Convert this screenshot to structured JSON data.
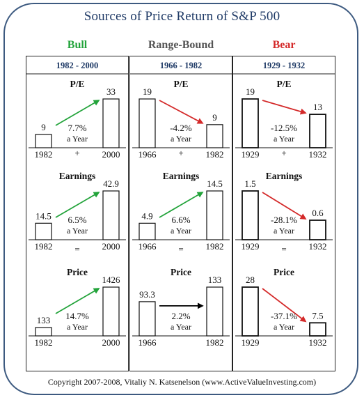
{
  "title": "Sources of  Price Return of S&P 500",
  "copyright": "Copyright 2007-2008, Vitaliy N. Katsenelson (www.ActiveValueInvesting.com)",
  "columns": [
    {
      "name": "Bull",
      "color": "#22a33a",
      "period": "1982 - 2000",
      "start_year": "1982",
      "end_year": "2000",
      "sections": [
        {
          "op": "",
          "label": "P/E",
          "start": 9,
          "end": 33,
          "start_label": "9",
          "end_label": "33",
          "rate": "7.7%",
          "trend": "up"
        },
        {
          "op": "+",
          "label": "Earnings",
          "start": 14.5,
          "end": 42.9,
          "start_label": "14.5",
          "end_label": "42.9",
          "rate": "6.5%",
          "trend": "up"
        },
        {
          "op": "=",
          "label": "Price",
          "start": 133,
          "end": 1426,
          "start_label": "133",
          "end_label": "1426",
          "rate": "14.7%",
          "trend": "up"
        }
      ]
    },
    {
      "name": "Range-Bound",
      "color": "#555555",
      "period": "1966 - 1982",
      "start_year": "1966",
      "end_year": "1982",
      "sections": [
        {
          "op": "",
          "label": "P/E",
          "start": 19,
          "end": 9,
          "start_label": "19",
          "end_label": "9",
          "rate": "-4.2%",
          "trend": "down"
        },
        {
          "op": "+",
          "label": "Earnings",
          "start": 4.9,
          "end": 14.5,
          "start_label": "4.9",
          "end_label": "14.5",
          "rate": "6.6%",
          "trend": "up"
        },
        {
          "op": "=",
          "label": "Price",
          "start": 93.3,
          "end": 133,
          "start_label": "93.3",
          "end_label": "133",
          "rate": "2.2%",
          "trend": "flat"
        }
      ]
    },
    {
      "name": "Bear",
      "color": "#d42a2a",
      "period": "1929 - 1932",
      "start_year": "1929",
      "end_year": "1932",
      "sections": [
        {
          "op": "",
          "label": "P/E",
          "start": 19,
          "end": 13,
          "start_label": "19",
          "end_label": "13",
          "rate": "-12.5%",
          "trend": "down"
        },
        {
          "op": "+",
          "label": "Earnings",
          "start": 1.5,
          "end": 0.6,
          "start_label": "1.5",
          "end_label": "0.6",
          "rate": "-28.1%",
          "trend": "down"
        },
        {
          "op": "=",
          "label": "Price",
          "start": 28,
          "end": 7.5,
          "start_label": "28",
          "end_label": "7.5",
          "rate": "-37.1%",
          "trend": "down"
        }
      ]
    }
  ],
  "rate_suffix": "a Year",
  "trend_colors": {
    "up": "#22a33a",
    "down": "#d42a2a",
    "flat": "#000000"
  },
  "period_color": "#1f3a66"
}
